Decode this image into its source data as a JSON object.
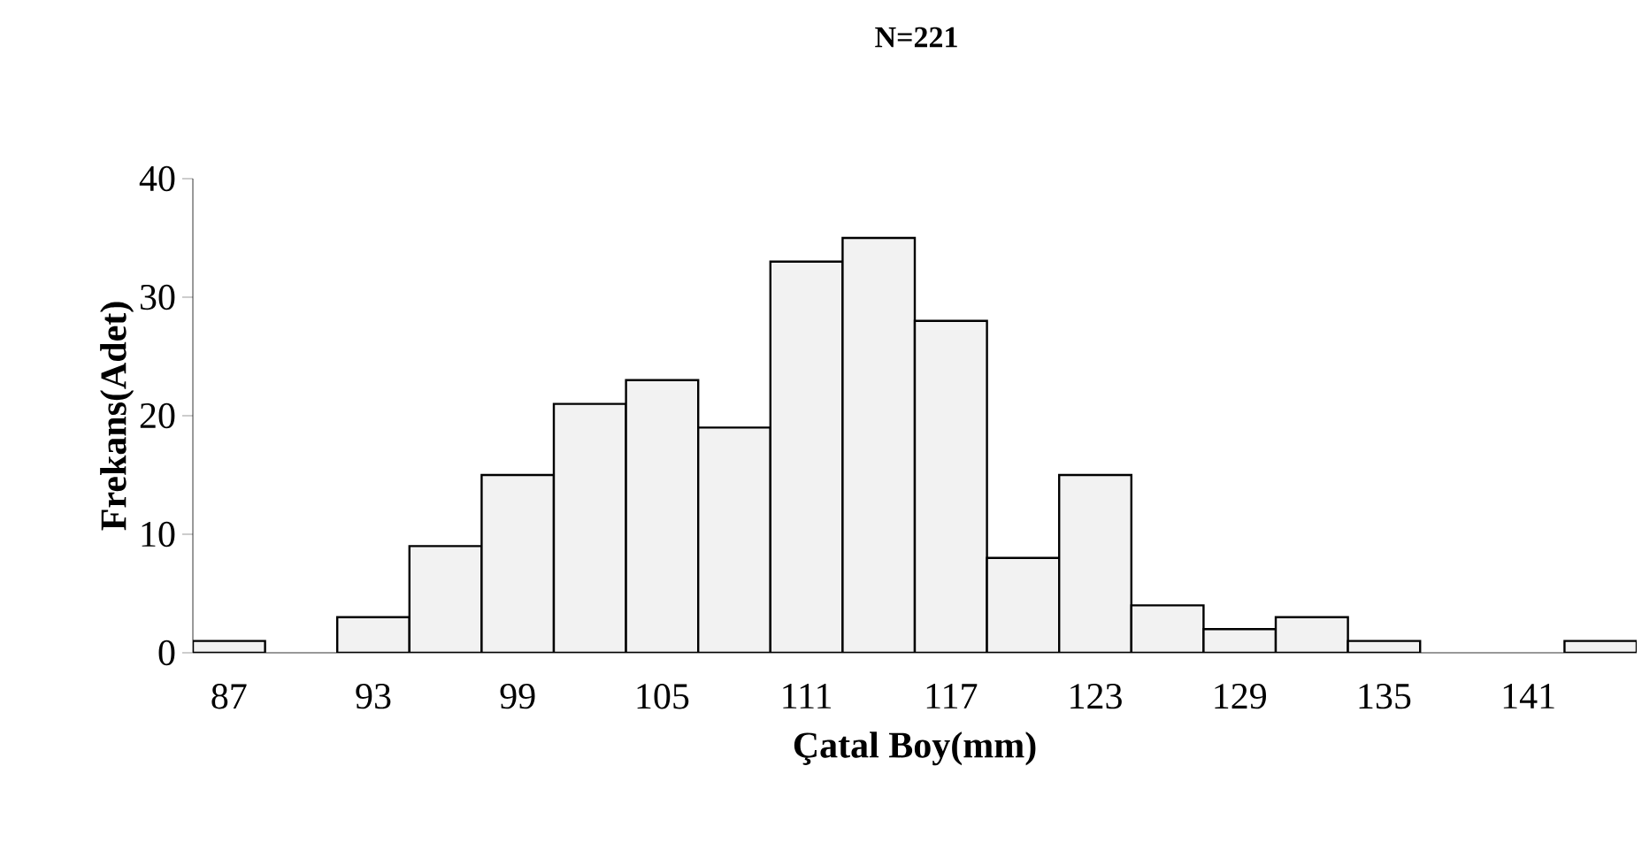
{
  "chart_data": {
    "type": "bar",
    "title": "N=221",
    "xlabel": "Çatal Boy(mm)",
    "ylabel": "Frekans(Adet)",
    "categories": [
      "87",
      null,
      "93",
      null,
      "99",
      null,
      "105",
      null,
      "111",
      null,
      "117",
      null,
      "123",
      null,
      "129",
      null,
      "135",
      null,
      "141",
      null
    ],
    "values": [
      1,
      0,
      3,
      9,
      15,
      21,
      23,
      19,
      33,
      35,
      28,
      8,
      15,
      4,
      2,
      3,
      1,
      0,
      0,
      1
    ],
    "color": "#f2f2f2",
    "ylim": [
      0,
      40
    ],
    "yticks": [
      0,
      10,
      20,
      30,
      40
    ],
    "grid": false
  }
}
